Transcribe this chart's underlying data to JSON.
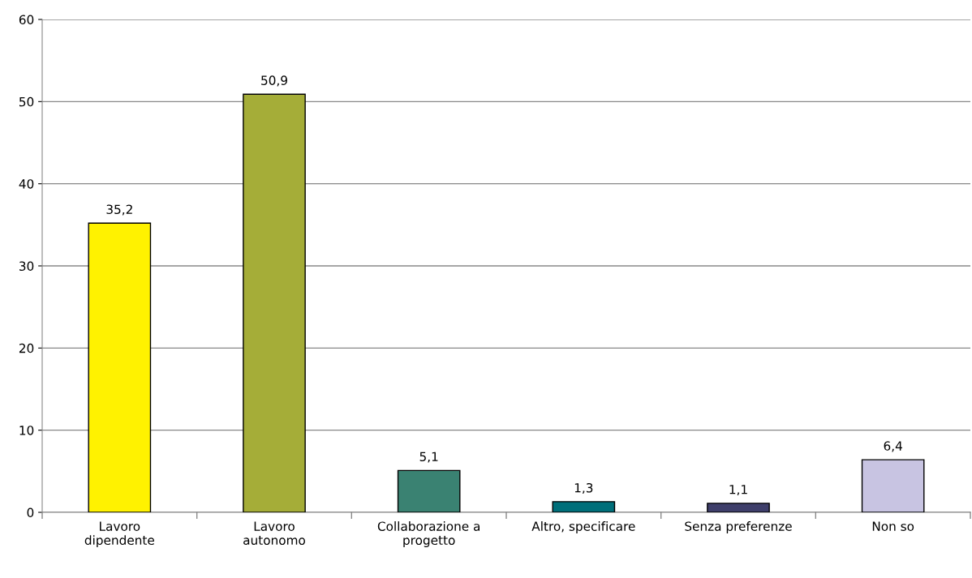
{
  "chart_data": {
    "type": "bar",
    "categories": [
      "Lavoro\ndipendente",
      "Lavoro\nautonomo",
      "Collaborazione a\nprogetto",
      "Altro, specificare",
      "Senza preferenze",
      "Non so"
    ],
    "values": [
      35.2,
      50.9,
      5.1,
      1.3,
      1.1,
      6.4
    ],
    "colors": [
      "#fff200",
      "#a5ad38",
      "#3a8272",
      "#006f7a",
      "#3f3f6b",
      "#c8c4e2"
    ],
    "value_labels": [
      "35,2",
      "50,9",
      "5,1",
      "1,3",
      "1,1",
      "6,4"
    ],
    "ylim": [
      0,
      60
    ],
    "yticks": [
      0,
      10,
      20,
      30,
      40,
      50,
      60
    ],
    "grid": "y",
    "legend": false
  }
}
